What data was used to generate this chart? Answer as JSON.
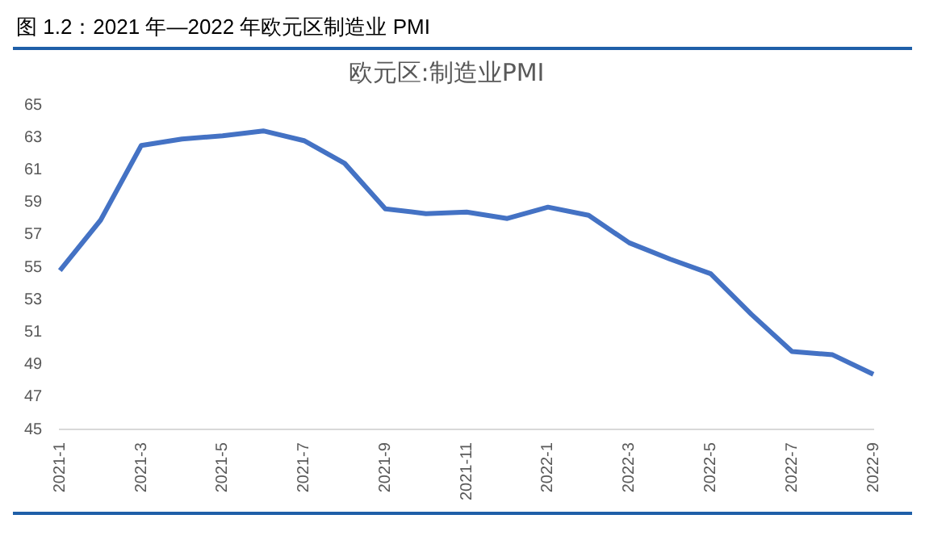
{
  "chart_data": {
    "type": "line",
    "title": "图 1.2：2021 年—2022 年欧元区制造业 PMI",
    "subtitle": "欧元区:制造业PMI",
    "categories": [
      "2021-1",
      null,
      "2021-3",
      null,
      "2021-5",
      null,
      "2021-7",
      null,
      "2021-9",
      null,
      "2021-11",
      null,
      "2022-1",
      null,
      "2022-3",
      null,
      "2022-5",
      null,
      "2022-7",
      null,
      "2022-9"
    ],
    "series": [
      {
        "color": "#4472c4",
        "values": [
          54.8,
          57.9,
          62.5,
          62.9,
          63.1,
          63.4,
          62.8,
          61.4,
          58.6,
          58.3,
          58.4,
          58.0,
          58.7,
          58.2,
          56.5,
          55.5,
          54.6,
          52.1,
          49.8,
          49.6,
          48.4
        ]
      }
    ],
    "ylim": [
      45,
      65
    ],
    "yticks": [
      45,
      47,
      49,
      51,
      53,
      55,
      57,
      59,
      61,
      63,
      65
    ],
    "grid": false,
    "legend": false,
    "marker": "none",
    "line_style": "solid"
  }
}
